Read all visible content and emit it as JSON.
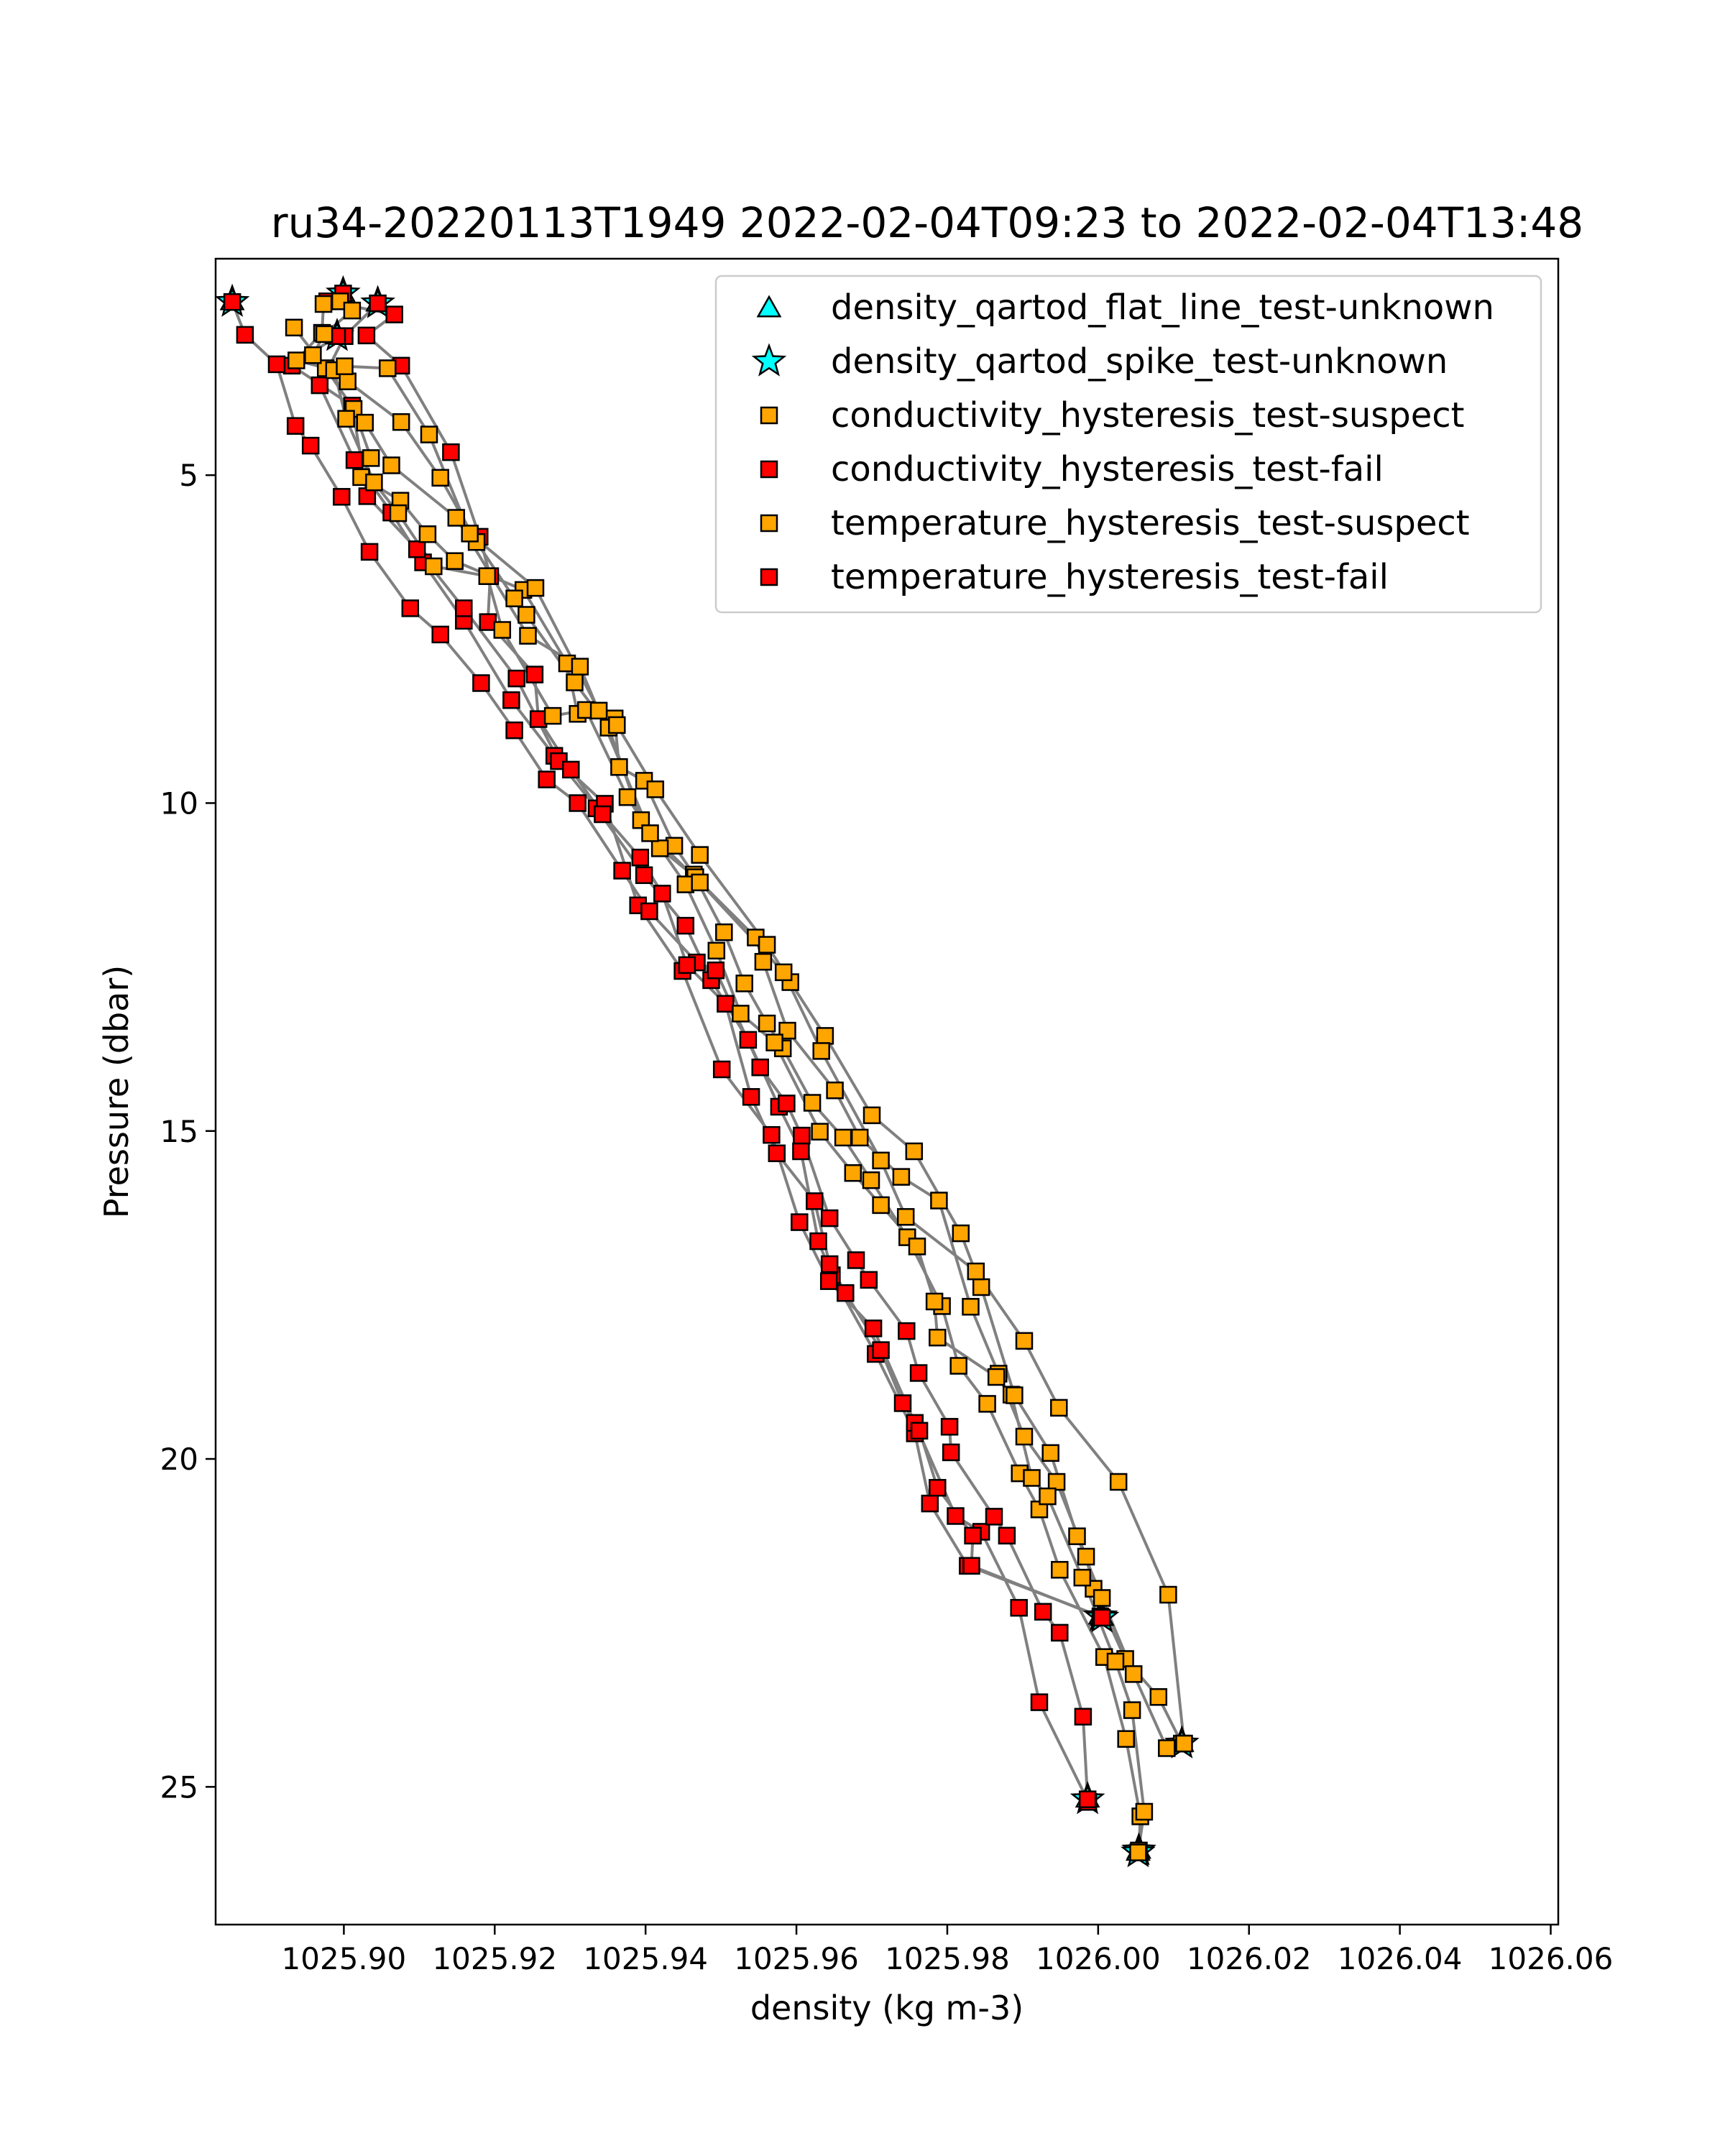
{
  "chart_data": {
    "type": "scatter",
    "title": "ru34-20220113T1949 2022-02-04T09:23 to 2022-02-04T13:48",
    "xlabel": "density (kg m-3)",
    "ylabel": "Pressure (dbar)",
    "xlim": [
      1025.883,
      1026.061
    ],
    "ylim": [
      27.1,
      1.7
    ],
    "y_inverted": true,
    "grid": false,
    "legend_position": "upper-right",
    "x_ticks": [
      {
        "value": 1025.9,
        "label": "1025.90"
      },
      {
        "value": 1025.92,
        "label": "1025.92"
      },
      {
        "value": 1025.94,
        "label": "1025.94"
      },
      {
        "value": 1025.96,
        "label": "1025.96"
      },
      {
        "value": 1025.98,
        "label": "1025.98"
      },
      {
        "value": 1026.0,
        "label": "1026.00"
      },
      {
        "value": 1026.02,
        "label": "1026.02"
      },
      {
        "value": 1026.04,
        "label": "1026.04"
      },
      {
        "value": 1026.06,
        "label": "1026.06"
      }
    ],
    "y_ticks": [
      {
        "value": 5,
        "label": "5"
      },
      {
        "value": 10,
        "label": "10"
      },
      {
        "value": 15,
        "label": "15"
      },
      {
        "value": 20,
        "label": "20"
      },
      {
        "value": 25,
        "label": "25"
      }
    ],
    "legend": [
      {
        "label": "density_qartod_flat_line_test-unknown",
        "marker": "triangle",
        "color": "#00ffff"
      },
      {
        "label": "density_qartod_spike_test-unknown",
        "marker": "star",
        "color": "#00ffff"
      },
      {
        "label": "conductivity_hysteresis_test-suspect",
        "marker": "square",
        "color": "#ffa500"
      },
      {
        "label": "conductivity_hysteresis_test-fail",
        "marker": "square",
        "color": "#ff0000"
      },
      {
        "label": "temperature_hysteresis_test-suspect",
        "marker": "square",
        "color": "#ffa500"
      },
      {
        "label": "temperature_hysteresis_test-fail",
        "marker": "square",
        "color": "#ff0000"
      }
    ],
    "line_color": "#808080",
    "profiles": [
      {
        "flag": "fail",
        "points": [
          [
            1025.9045,
            2.38
          ],
          [
            1025.9001,
            2.88
          ],
          [
            1025.8968,
            3.63
          ],
          [
            1025.9014,
            4.77
          ],
          [
            1025.9063,
            5.57
          ],
          [
            1025.9105,
            6.33
          ],
          [
            1025.9159,
            7.22
          ],
          [
            1025.9222,
            8.43
          ],
          [
            1025.9279,
            9.28
          ],
          [
            1025.9335,
            10.08
          ],
          [
            1025.9398,
            11.1
          ],
          [
            1025.9453,
            11.87
          ],
          [
            1025.9487,
            12.7
          ],
          [
            1025.9536,
            13.61
          ],
          [
            1025.9577,
            14.63
          ],
          [
            1025.9606,
            15.31
          ],
          [
            1025.9629,
            16.68
          ],
          [
            1025.9647,
            17.2
          ],
          [
            1025.9705,
            18.4
          ],
          [
            1025.9757,
            19.61
          ],
          [
            1025.9777,
            20.68
          ],
          [
            1025.9827,
            21.63
          ],
          [
            1026.0003,
            22.4
          ]
        ],
        "spike": [
          [
            1025.9045,
            2.38
          ],
          [
            1026.0003,
            22.4
          ]
        ]
      },
      {
        "flag": "fail",
        "points": [
          [
            1025.8991,
            2.88
          ],
          [
            1025.8931,
            3.33
          ],
          [
            1025.9011,
            3.94
          ],
          [
            1025.9031,
            5.32
          ],
          [
            1025.9097,
            6.13
          ],
          [
            1025.9159,
            7.03
          ],
          [
            1025.9229,
            8.1
          ],
          [
            1025.9285,
            9.36
          ],
          [
            1025.9346,
            10.01
          ],
          [
            1025.939,
            11.56
          ],
          [
            1025.9449,
            12.56
          ],
          [
            1025.9501,
            14.06
          ],
          [
            1025.9567,
            15.06
          ],
          [
            1025.9604,
            16.39
          ],
          [
            1025.9643,
            17.29
          ],
          [
            1025.9702,
            18.01
          ],
          [
            1025.9757,
            19.45
          ],
          [
            1025.9811,
            20.87
          ],
          [
            1025.9845,
            21.11
          ],
          [
            1025.9895,
            22.27
          ],
          [
            1025.9922,
            23.71
          ],
          [
            1025.9987,
            25.23
          ]
        ],
        "spike": [
          [
            1025.8991,
            2.88
          ]
        ]
      },
      {
        "flag": "fail",
        "points": [
          [
            1025.8852,
            2.36
          ],
          [
            1025.8869,
            2.86
          ],
          [
            1025.8911,
            3.31
          ],
          [
            1025.8936,
            4.25
          ],
          [
            1025.8956,
            4.55
          ],
          [
            1025.8997,
            5.33
          ],
          [
            1025.9034,
            6.17
          ],
          [
            1025.9088,
            7.03
          ],
          [
            1025.9128,
            7.43
          ],
          [
            1025.9182,
            8.17
          ],
          [
            1025.9226,
            8.89
          ],
          [
            1025.9269,
            9.64
          ],
          [
            1025.931,
            10.0
          ],
          [
            1025.9369,
            11.03
          ],
          [
            1025.9405,
            11.65
          ],
          [
            1025.9468,
            12.43
          ],
          [
            1025.9493,
            12.55
          ],
          [
            1025.9552,
            14.03
          ],
          [
            1025.9587,
            14.58
          ],
          [
            1025.9607,
            15.07
          ],
          [
            1025.9644,
            16.33
          ],
          [
            1025.9679,
            16.97
          ],
          [
            1025.9696,
            17.27
          ],
          [
            1025.9746,
            18.05
          ],
          [
            1025.9762,
            18.69
          ],
          [
            1025.9803,
            19.51
          ],
          [
            1025.9805,
            19.9
          ],
          [
            1025.9862,
            20.88
          ],
          [
            1025.9879,
            21.17
          ],
          [
            1025.9927,
            22.33
          ],
          [
            1025.9949,
            22.65
          ],
          [
            1025.998,
            23.93
          ],
          [
            1025.9986,
            25.19
          ]
        ],
        "spike": [
          [
            1025.8852,
            2.36
          ],
          [
            1025.9986,
            25.19
          ]
        ]
      },
      {
        "flag": "fail",
        "points": [
          [
            1025.8999,
            2.23
          ],
          [
            1025.8978,
            2.35
          ],
          [
            1025.9067,
            2.55
          ],
          [
            1025.903,
            2.87
          ],
          [
            1025.9076,
            3.33
          ],
          [
            1025.9142,
            4.65
          ],
          [
            1025.918,
            5.94
          ],
          [
            1025.9194,
            6.54
          ],
          [
            1025.9191,
            7.24
          ],
          [
            1025.9253,
            8.04
          ],
          [
            1025.9258,
            8.72
          ],
          [
            1025.9301,
            9.49
          ],
          [
            1025.9343,
            10.17
          ],
          [
            1025.9393,
            10.83
          ],
          [
            1025.9422,
            11.38
          ],
          [
            1025.9455,
            12.47
          ],
          [
            1025.9506,
            13.06
          ],
          [
            1025.954,
            14.48
          ],
          [
            1025.9574,
            15.34
          ],
          [
            1025.9624,
            16.07
          ],
          [
            1025.9644,
            17.03
          ],
          [
            1025.9665,
            17.47
          ],
          [
            1025.9712,
            18.34
          ],
          [
            1025.9741,
            19.15
          ],
          [
            1025.9763,
            19.57
          ],
          [
            1025.9787,
            20.44
          ],
          [
            1025.9834,
            21.17
          ],
          [
            1025.9832,
            21.63
          ],
          [
            1026.0005,
            22.42
          ]
        ],
        "spike": [
          [
            1025.8999,
            2.23
          ],
          [
            1026.0005,
            22.42
          ]
        ]
      },
      {
        "flag": "suspect",
        "points": [
          [
            1025.8934,
            2.75
          ],
          [
            1025.8976,
            3.37
          ],
          [
            1025.9013,
            3.99
          ],
          [
            1025.9036,
            4.74
          ],
          [
            1025.9023,
            5.03
          ],
          [
            1025.9075,
            5.39
          ],
          [
            1025.9111,
            5.9
          ],
          [
            1025.9147,
            6.31
          ],
          [
            1025.9238,
            6.75
          ],
          [
            1025.9296,
            7.87
          ],
          [
            1025.931,
            8.64
          ],
          [
            1025.9359,
            8.71
          ],
          [
            1025.9365,
            9.45
          ],
          [
            1025.9398,
            9.66
          ],
          [
            1025.9438,
            10.65
          ],
          [
            1025.9464,
            11.09
          ],
          [
            1025.9504,
            11.97
          ],
          [
            1025.9531,
            12.75
          ],
          [
            1025.9561,
            13.36
          ],
          [
            1025.9582,
            13.74
          ],
          [
            1025.9621,
            14.57
          ],
          [
            1025.9662,
            15.1
          ],
          [
            1025.9699,
            15.75
          ],
          [
            1025.9747,
            16.62
          ],
          [
            1025.9793,
            17.67
          ],
          [
            1025.9815,
            18.58
          ],
          [
            1025.9853,
            19.16
          ],
          [
            1025.9896,
            20.22
          ],
          [
            1025.9922,
            20.77
          ],
          [
            1025.9949,
            21.69
          ],
          [
            1026.0008,
            23.02
          ],
          [
            1026.0037,
            24.27
          ],
          [
            1026.0056,
            25.45
          ],
          [
            1026.0054,
            25.97
          ]
        ],
        "spike": [
          [
            1026.0054,
            25.97
          ]
        ]
      },
      {
        "flag": "suspect",
        "points": [
          [
            1025.8973,
            2.39
          ],
          [
            1025.8971,
            2.83
          ],
          [
            1025.8937,
            3.25
          ],
          [
            1025.8987,
            3.4
          ],
          [
            1025.9003,
            4.14
          ],
          [
            1025.904,
            5.11
          ],
          [
            1025.9072,
            5.58
          ],
          [
            1025.9119,
            6.39
          ],
          [
            1025.919,
            6.54
          ],
          [
            1025.921,
            7.36
          ],
          [
            1025.9277,
            8.67
          ],
          [
            1025.9321,
            8.58
          ],
          [
            1025.9376,
            9.91
          ],
          [
            1025.9419,
            10.69
          ],
          [
            1025.9466,
            11.13
          ],
          [
            1025.9546,
            12.05
          ],
          [
            1025.9556,
            12.42
          ],
          [
            1025.9588,
            13.47
          ],
          [
            1025.9651,
            14.38
          ],
          [
            1025.9684,
            15.1
          ],
          [
            1025.9739,
            15.7
          ],
          [
            1025.9789,
            16.06
          ],
          [
            1025.9831,
            17.68
          ],
          [
            1025.9868,
            18.7
          ],
          [
            1025.9902,
            19.66
          ],
          [
            1025.9945,
            20.35
          ],
          [
            1025.9984,
            21.49
          ],
          [
            1025.9994,
            21.98
          ],
          [
            1026.0036,
            23.05
          ],
          [
            1026.008,
            23.63
          ],
          [
            1026.0111,
            24.34
          ]
        ],
        "spike": [
          [
            1026.0111,
            24.34
          ]
        ]
      },
      {
        "flag": "suspect",
        "points": [
          [
            1025.8995,
            2.35
          ],
          [
            1025.9011,
            2.49
          ],
          [
            1025.8974,
            2.85
          ],
          [
            1025.8959,
            3.17
          ],
          [
            1025.9005,
            3.57
          ],
          [
            1025.9076,
            4.19
          ],
          [
            1025.9128,
            5.04
          ],
          [
            1025.9176,
            6.02
          ],
          [
            1025.9226,
            6.88
          ],
          [
            1025.9242,
            7.13
          ],
          [
            1025.9306,
            8.16
          ],
          [
            1025.9351,
            8.85
          ],
          [
            1025.9394,
            10.26
          ],
          [
            1025.9453,
            11.24
          ],
          [
            1025.9494,
            12.25
          ],
          [
            1025.9526,
            13.21
          ],
          [
            1025.9571,
            13.65
          ],
          [
            1025.9631,
            15.01
          ],
          [
            1025.9675,
            15.64
          ],
          [
            1025.9712,
            16.13
          ],
          [
            1025.976,
            16.76
          ],
          [
            1025.9783,
            17.6
          ],
          [
            1025.9787,
            18.15
          ],
          [
            1025.9865,
            18.75
          ],
          [
            1025.9885,
            19.02
          ],
          [
            1025.9912,
            20.29
          ],
          [
            1025.9933,
            20.57
          ],
          [
            1025.9979,
            21.81
          ],
          [
            1026.0023,
            23.09
          ],
          [
            1026.0045,
            23.83
          ],
          [
            1026.0061,
            25.38
          ],
          [
            1026.0053,
            26.0
          ]
        ],
        "spike": [
          [
            1026.0053,
            26.0
          ]
        ]
      },
      {
        "flag": "suspect",
        "points": [
          [
            1025.9001,
            3.34
          ],
          [
            1025.9058,
            3.37
          ],
          [
            1025.9113,
            4.38
          ],
          [
            1025.9167,
            5.89
          ],
          [
            1025.9254,
            6.72
          ],
          [
            1025.9338,
            8.59
          ],
          [
            1025.9362,
            8.81
          ],
          [
            1025.9413,
            9.79
          ],
          [
            1025.9472,
            10.79
          ],
          [
            1025.9561,
            12.16
          ],
          [
            1025.9592,
            12.73
          ],
          [
            1025.9638,
            13.55
          ],
          [
            1025.97,
            14.76
          ],
          [
            1025.9756,
            15.31
          ],
          [
            1025.9818,
            16.56
          ],
          [
            1025.9845,
            17.38
          ],
          [
            1025.9889,
            19.03
          ],
          [
            1025.9937,
            19.91
          ],
          [
            1025.9972,
            21.18
          ],
          [
            1026.0005,
            22.12
          ],
          [
            1026.0047,
            23.28
          ],
          [
            1026.0091,
            24.41
          ]
        ],
        "spike": []
      },
      {
        "flag": "suspect",
        "points": [
          [
            1025.9028,
            4.2
          ],
          [
            1025.9063,
            4.85
          ],
          [
            1025.9149,
            5.65
          ],
          [
            1025.9244,
            7.45
          ],
          [
            1025.9313,
            7.92
          ],
          [
            1025.9406,
            10.46
          ],
          [
            1025.9472,
            11.21
          ],
          [
            1025.9583,
            12.58
          ],
          [
            1025.9633,
            13.78
          ],
          [
            1025.9712,
            15.45
          ],
          [
            1025.9745,
            16.31
          ],
          [
            1025.9838,
            17.14
          ],
          [
            1025.9902,
            18.2
          ],
          [
            1025.9948,
            19.22
          ],
          [
            1026.0027,
            20.35
          ],
          [
            1026.0093,
            22.07
          ],
          [
            1026.0114,
            24.34
          ]
        ],
        "spike": []
      }
    ]
  }
}
